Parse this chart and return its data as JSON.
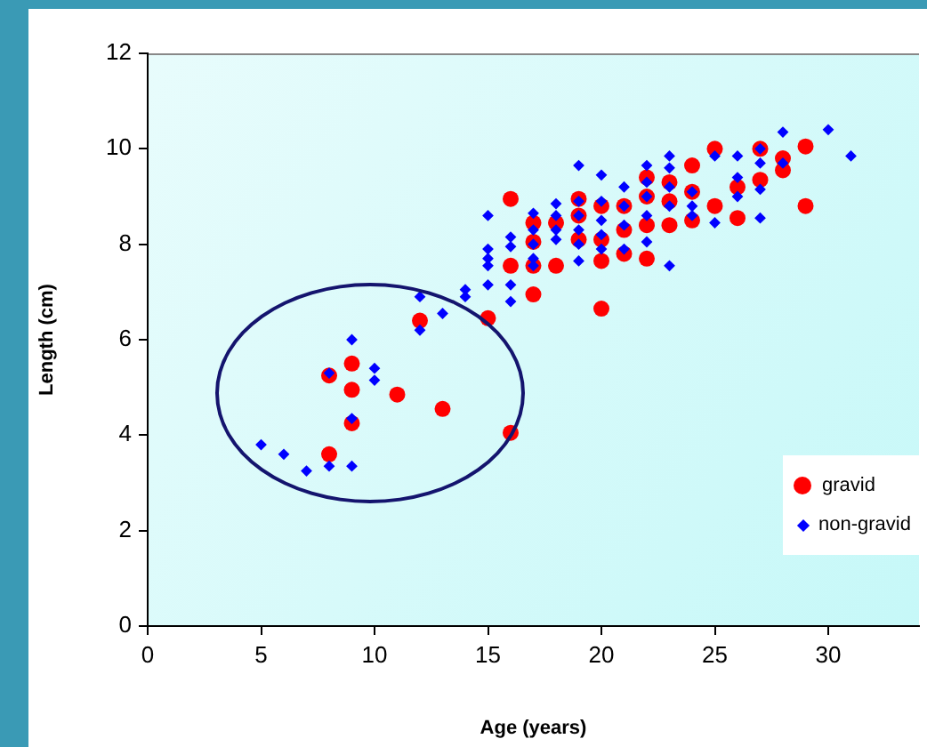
{
  "chart_data": {
    "type": "scatter",
    "xlabel": "Age (years)",
    "ylabel": "Length (cm)",
    "xlim": [
      0,
      34
    ],
    "xticks": [
      0,
      5,
      10,
      15,
      20,
      25,
      30
    ],
    "ylim": [
      0,
      12
    ],
    "yticks": [
      0,
      2,
      4,
      6,
      8,
      10,
      12
    ],
    "grid": false,
    "legend": "right",
    "series": [
      {
        "name": "gravid",
        "color": "#ff0000",
        "marker": "circle",
        "x": [
          8,
          9,
          9,
          11,
          13,
          9,
          8,
          16,
          12,
          15,
          16,
          16,
          17,
          17,
          17,
          17,
          18,
          18,
          19,
          19,
          19,
          20,
          20,
          20,
          20,
          21,
          21,
          21,
          22,
          22,
          22,
          22,
          23,
          23,
          23,
          24,
          24,
          24,
          25,
          25,
          26,
          26,
          27,
          27,
          28,
          28,
          29,
          29
        ],
        "values": [
          5.25,
          5.5,
          4.95,
          4.85,
          4.55,
          4.25,
          3.6,
          4.05,
          6.4,
          6.45,
          8.95,
          7.55,
          8.45,
          8.05,
          7.55,
          6.95,
          8.45,
          7.55,
          8.95,
          8.6,
          8.1,
          8.8,
          8.1,
          7.65,
          6.65,
          8.8,
          8.3,
          7.8,
          9.4,
          9.0,
          8.4,
          7.7,
          9.3,
          8.9,
          8.4,
          9.65,
          9.1,
          8.5,
          10.0,
          8.8,
          9.2,
          8.55,
          10.0,
          9.35,
          9.8,
          9.55,
          10.05,
          8.8
        ]
      },
      {
        "name": "non-gravid",
        "color": "#0000ff",
        "marker": "diamond",
        "x": [
          9,
          8,
          10,
          10,
          9,
          5,
          6,
          7,
          8,
          9,
          12,
          12,
          13,
          14,
          14,
          15,
          15,
          15,
          15,
          15,
          16,
          16,
          16,
          16,
          17,
          17,
          17,
          17,
          17,
          18,
          18,
          18,
          18,
          19,
          19,
          19,
          19,
          19,
          19,
          20,
          20,
          20,
          20,
          20,
          21,
          21,
          21,
          21,
          22,
          22,
          22,
          22,
          22,
          23,
          23,
          23,
          23,
          23,
          24,
          24,
          24,
          25,
          25,
          26,
          26,
          26,
          27,
          27,
          27,
          27,
          28,
          28,
          30,
          31
        ],
        "values": [
          6.0,
          5.3,
          5.4,
          5.15,
          4.35,
          3.8,
          3.6,
          3.25,
          3.35,
          3.35,
          6.2,
          6.9,
          6.55,
          7.05,
          6.9,
          8.6,
          7.9,
          7.7,
          7.55,
          7.15,
          8.15,
          7.95,
          7.15,
          6.8,
          8.65,
          8.3,
          8.0,
          7.7,
          7.55,
          8.85,
          8.6,
          8.3,
          8.1,
          9.65,
          8.9,
          8.6,
          8.3,
          8.0,
          7.65,
          9.45,
          8.9,
          8.5,
          8.2,
          7.9,
          9.2,
          8.8,
          8.4,
          7.9,
          9.65,
          9.3,
          9.0,
          8.6,
          8.05,
          9.85,
          9.6,
          9.2,
          8.8,
          7.55,
          9.1,
          8.8,
          8.6,
          9.85,
          8.45,
          9.85,
          9.4,
          9.0,
          10.0,
          9.7,
          9.15,
          8.55,
          9.7,
          10.35,
          10.4,
          9.85
        ]
      }
    ]
  }
}
